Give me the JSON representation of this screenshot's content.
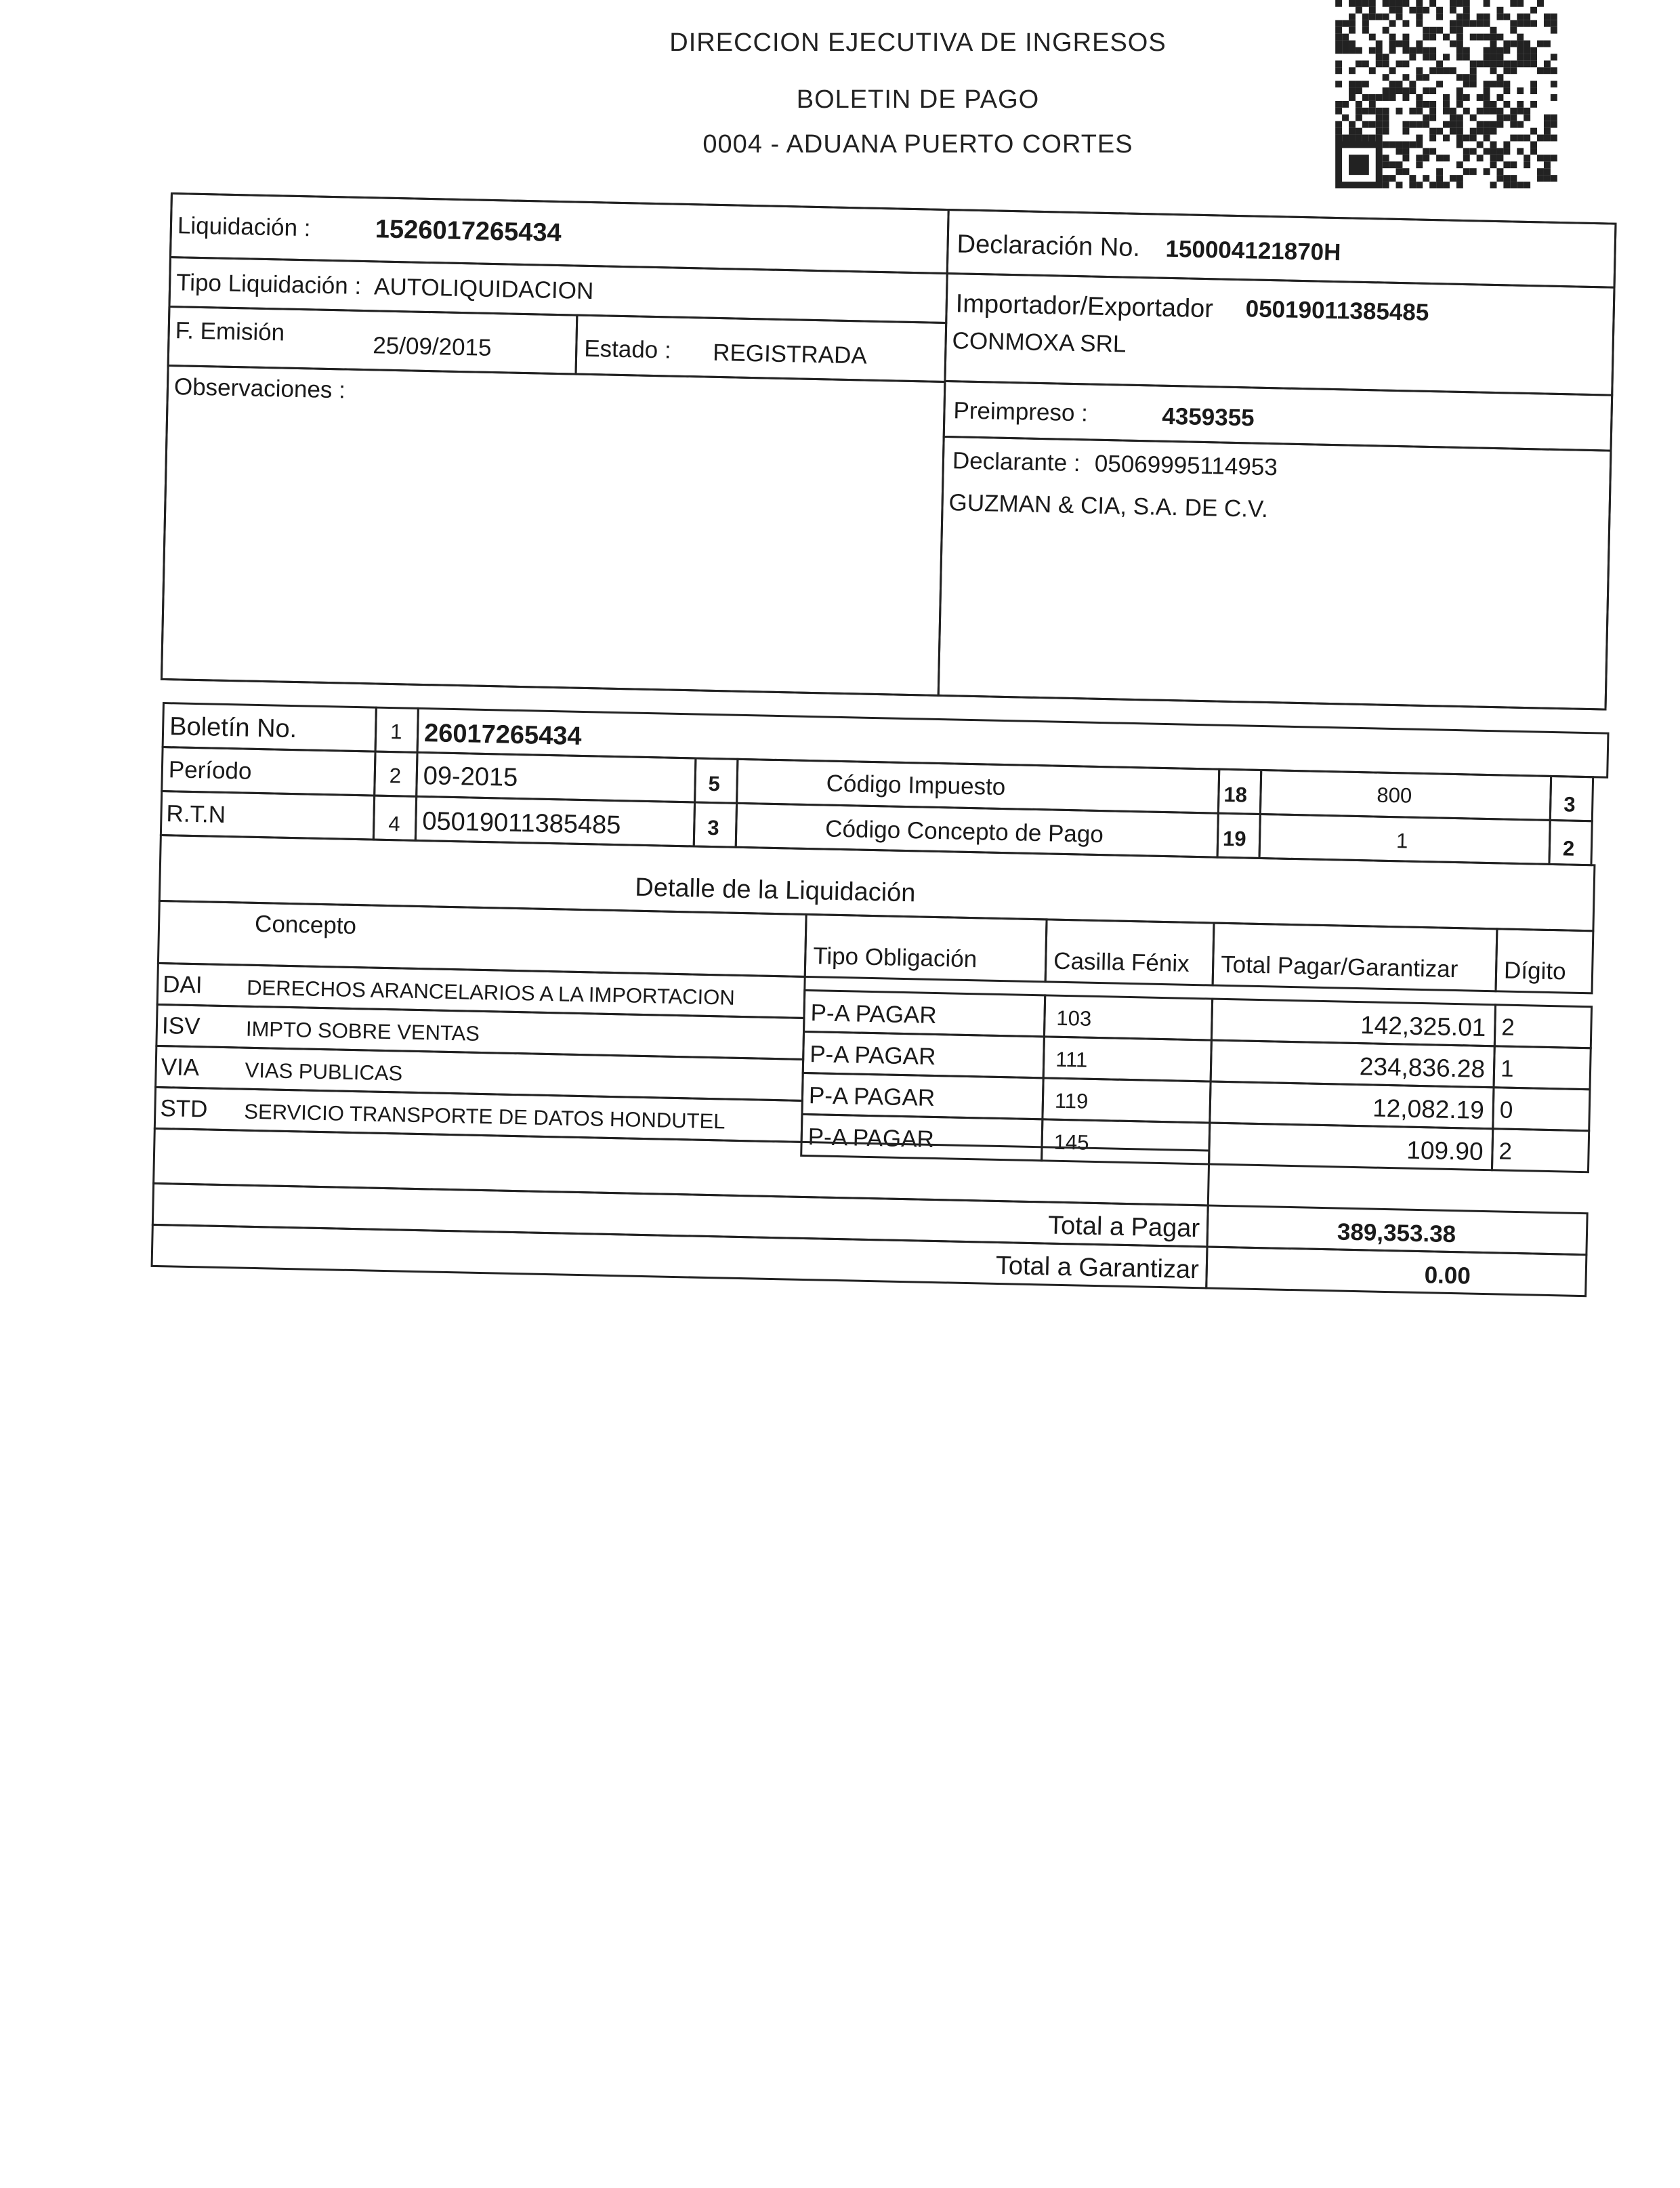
{
  "header": {
    "line1": "DIRECCION EJECUTIVA DE INGRESOS",
    "line2": "BOLETIN DE PAGO",
    "line3": "0004 - ADUANA PUERTO CORTES"
  },
  "qr_code": "qr-code-icon",
  "liquidacion": {
    "liquidacion_label": "Liquidación :",
    "liquidacion_value": "1526017265434",
    "tipo_label": "Tipo Liquidación :",
    "tipo_value": "AUTOLIQUIDACION",
    "emision_label": "F. Emisión",
    "emision_value": "25/09/2015",
    "estado_label": "Estado :",
    "estado_value": "REGISTRADA",
    "observaciones_label": "Observaciones :",
    "declaracion_label": "Declaración No.",
    "declaracion_value": "150004121870H",
    "importador_label": "Importador/Exportador",
    "importador_value": "05019011385485",
    "importador_name": "CONMOXA SRL",
    "preimpreso_label": "Preimpreso :",
    "preimpreso_value": "4359355",
    "declarante_label": "Declarante :",
    "declarante_value": "05069995114953",
    "declarante_name": "GUZMAN & CIA, S.A. DE C.V."
  },
  "boletin": {
    "boletin_label": "Boletín No.",
    "boletin_num": "1",
    "boletin_value": "26017265434",
    "periodo_label": "Período",
    "periodo_num": "2",
    "periodo_value": "09-2015",
    "rtn_label": "R.T.N",
    "rtn_num": "4",
    "rtn_value": "05019011385485",
    "box5": "5",
    "box3": "3",
    "codigo_impuesto_label": "Código Impuesto",
    "codigo_impuesto_num": "18",
    "codigo_impuesto_value": "800",
    "codigo_impuesto_digit": "3",
    "codigo_concepto_label": "Código Concepto de Pago",
    "codigo_concepto_num": "19",
    "codigo_concepto_value": "1",
    "codigo_concepto_digit": "2"
  },
  "detalle": {
    "title": "Detalle de la Liquidación",
    "columns": [
      "Concepto",
      "Tipo Obligación",
      "Casilla Fénix",
      "Total Pagar/Garantizar",
      "Dígito"
    ],
    "rows": [
      {
        "code": "DAI",
        "concepto": "DERECHOS ARANCELARIOS A LA IMPORTACION",
        "tipo": "P-A PAGAR",
        "casilla": "103",
        "total": "142,325.01",
        "digito": "2"
      },
      {
        "code": "ISV",
        "concepto": "IMPTO SOBRE VENTAS",
        "tipo": "P-A PAGAR",
        "casilla": "111",
        "total": "234,836.28",
        "digito": "1"
      },
      {
        "code": "VIA",
        "concepto": "VIAS PUBLICAS",
        "tipo": "P-A PAGAR",
        "casilla": "119",
        "total": "12,082.19",
        "digito": "0"
      },
      {
        "code": "STD",
        "concepto": "SERVICIO TRANSPORTE DE DATOS HONDUTEL",
        "tipo": "P-A PAGAR",
        "casilla": "145",
        "total": "109.90",
        "digito": "2"
      }
    ],
    "total_pagar_label": "Total  a Pagar",
    "total_pagar_value": "389,353.38",
    "total_garantizar_label": "Total  a Garantizar",
    "total_garantizar_value": "0.00"
  }
}
